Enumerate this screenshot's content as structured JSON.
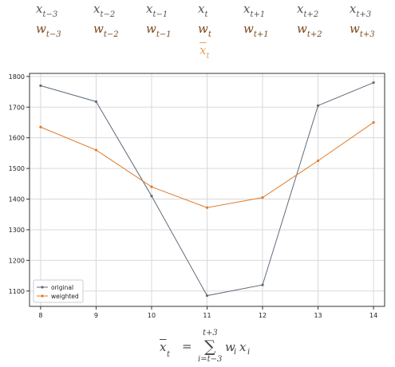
{
  "top_symbols": {
    "x_row": [
      {
        "base": "x",
        "sub": "t−3"
      },
      {
        "base": "x",
        "sub": "t−2"
      },
      {
        "base": "x",
        "sub": "t−1"
      },
      {
        "base": "x",
        "sub": "t"
      },
      {
        "base": "x",
        "sub": "t+1"
      },
      {
        "base": "x",
        "sub": "t+2"
      },
      {
        "base": "x",
        "sub": "t+3"
      }
    ],
    "w_row": [
      {
        "base": "w",
        "sub": "t−3"
      },
      {
        "base": "w",
        "sub": "t−2"
      },
      {
        "base": "w",
        "sub": "t−1"
      },
      {
        "base": "w",
        "sub": "t"
      },
      {
        "base": "w",
        "sub": "t+1"
      },
      {
        "base": "w",
        "sub": "t+2"
      },
      {
        "base": "w",
        "sub": "t+3"
      }
    ],
    "mean_symbol": {
      "base": "x",
      "sub": "t"
    }
  },
  "formula": {
    "lhs_base": "x",
    "lhs_sub": "t",
    "equals": "=",
    "sum_sign": "∑",
    "sum_upper": "t+3",
    "sum_lower": "i=t−3",
    "w_base": "w",
    "w_sub": "i",
    "x_base": "x",
    "x_sub": "i"
  },
  "colors": {
    "original": "#5f6b7a",
    "weighted": "#e07b2a",
    "grid": "#d9d9d9",
    "axis": "#333333"
  },
  "chart_data": {
    "type": "line",
    "x": [
      8,
      9,
      10,
      11,
      12,
      13,
      14
    ],
    "xticks": [
      "8",
      "9",
      "10",
      "11",
      "12",
      "13",
      "14"
    ],
    "yticks": [
      "1100",
      "1200",
      "1300",
      "1400",
      "1500",
      "1600",
      "1700",
      "1800"
    ],
    "ylim": [
      1050,
      1810
    ],
    "xlim": [
      7.8,
      14.2
    ],
    "grid": true,
    "legend": "lower-left",
    "series": [
      {
        "name": "original",
        "color": "#5f6b7a",
        "values": [
          1770,
          1718,
          1410,
          1085,
          1120,
          1705,
          1780
        ]
      },
      {
        "name": "weighted",
        "color": "#e07b2a",
        "values": [
          1635,
          1560,
          1440,
          1372,
          1405,
          1525,
          1650
        ]
      }
    ]
  }
}
